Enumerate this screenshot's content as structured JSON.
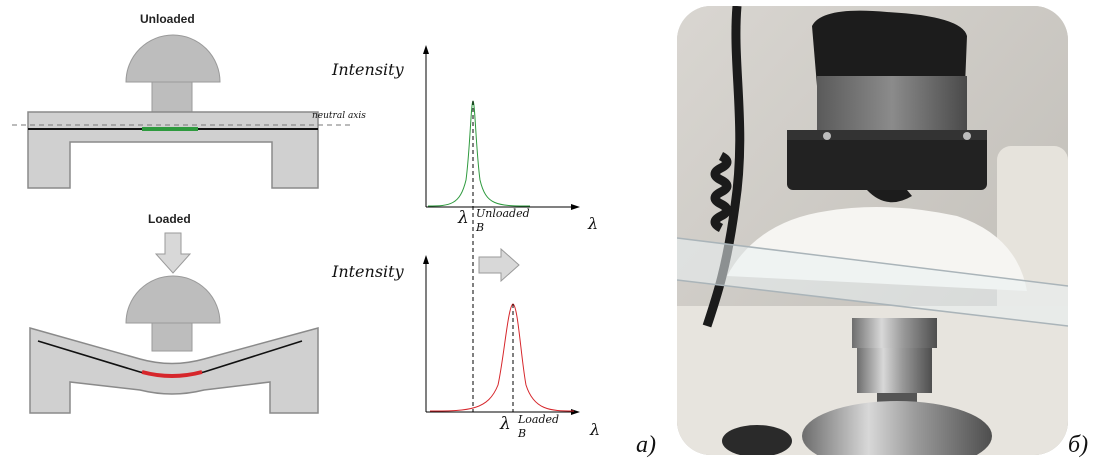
{
  "figure": {
    "unloaded_label": "Unloaded",
    "loaded_label": "Loaded",
    "neutral_axis_label": "neutral axis",
    "intensity_label_top": "Intensity",
    "intensity_label_bottom": "Intensity",
    "lambda_symbol": "λ",
    "lambda_b": "λ",
    "sub_b": "B",
    "sup_unloaded": "Unloaded",
    "sup_loaded": "Loaded",
    "panel_a": "a)",
    "panel_b": "б)"
  },
  "colors": {
    "beam": "#d0d0d0",
    "beam_stroke": "#8a8a8a",
    "unloaded_peak": "#2e9a3e",
    "loaded_peak": "#d6262b",
    "fiber": "#111111",
    "arrow_fill": "#d8d8d8"
  },
  "icons": [
    "down-arrow-icon",
    "right-arrow-icon"
  ]
}
